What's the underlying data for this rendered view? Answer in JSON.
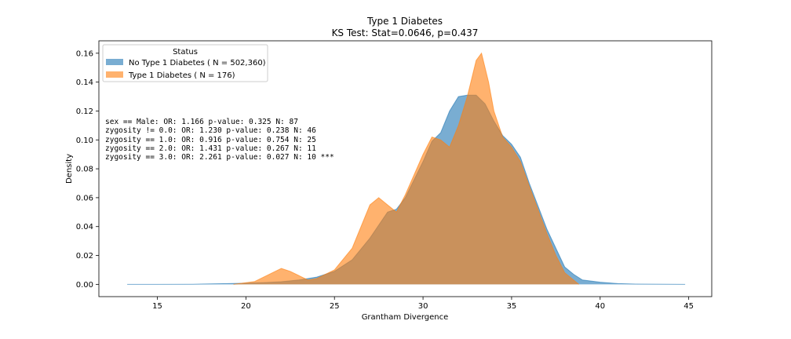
{
  "chart_data": {
    "type": "area",
    "title": "Type 1 Diabetes",
    "subtitle": "KS Test: Stat=0.0646, p=0.437",
    "xlabel": "Grantham Divergence",
    "ylabel": "Density",
    "xlim": [
      11.7,
      46.3
    ],
    "ylim": [
      -0.0085,
      0.1686
    ],
    "xticks": [
      15,
      20,
      25,
      30,
      35,
      40,
      45
    ],
    "yticks": [
      0.0,
      0.02,
      0.04,
      0.06,
      0.08,
      0.1,
      0.12,
      0.14,
      0.16
    ],
    "xtick_labels": [
      "15",
      "20",
      "25",
      "30",
      "35",
      "40",
      "45"
    ],
    "ytick_labels": [
      "0.00",
      "0.02",
      "0.04",
      "0.06",
      "0.08",
      "0.10",
      "0.12",
      "0.14",
      "0.16"
    ],
    "grid": false,
    "legend": {
      "title": "Status",
      "placement": "top-left"
    },
    "series": [
      {
        "name": "No Type 1 Diabetes ( N = 502,360)",
        "color": "#1f77b4",
        "x": [
          13.3,
          15,
          17,
          19,
          20,
          21,
          22,
          23,
          24,
          25,
          26,
          27,
          27.5,
          28,
          28.5,
          29,
          30,
          30.5,
          31,
          31.5,
          32,
          32.5,
          33,
          33.5,
          34,
          34.5,
          35,
          35.5,
          36,
          37,
          38,
          38.5,
          39,
          40,
          41,
          42,
          44.8
        ],
        "y": [
          0.0,
          0.0,
          0.0001,
          0.0005,
          0.0008,
          0.0012,
          0.0018,
          0.003,
          0.005,
          0.009,
          0.017,
          0.032,
          0.041,
          0.05,
          0.052,
          0.06,
          0.085,
          0.099,
          0.105,
          0.12,
          0.13,
          0.131,
          0.131,
          0.125,
          0.113,
          0.103,
          0.097,
          0.088,
          0.07,
          0.038,
          0.012,
          0.007,
          0.003,
          0.0015,
          0.0005,
          0.0002,
          0.0
        ]
      },
      {
        "name": "Type 1 Diabetes ( N = 176)",
        "color": "#ff7f0e",
        "x": [
          19.3,
          20.5,
          21.5,
          22,
          22.5,
          23.5,
          24,
          25,
          26,
          27,
          27.5,
          28,
          28.5,
          29,
          30,
          30.5,
          31,
          31.5,
          32,
          32.5,
          33,
          33.3,
          33.7,
          34,
          34.5,
          35,
          35.5,
          36,
          37,
          37.5,
          38,
          38.8
        ],
        "y": [
          0.0,
          0.002,
          0.008,
          0.011,
          0.009,
          0.003,
          0.004,
          0.01,
          0.025,
          0.055,
          0.06,
          0.055,
          0.05,
          0.062,
          0.09,
          0.102,
          0.1,
          0.095,
          0.11,
          0.13,
          0.155,
          0.16,
          0.14,
          0.12,
          0.102,
          0.095,
          0.085,
          0.068,
          0.035,
          0.02,
          0.008,
          0.0
        ]
      }
    ],
    "annotations": [
      "sex == Male: OR: 1.166 p-value: 0.325 N: 87",
      "zygosity != 0.0: OR: 1.230 p-value: 0.238 N: 46",
      "zygosity == 1.0: OR: 0.916 p-value: 0.754 N: 25",
      "zygosity == 2.0: OR: 1.431 p-value: 0.267 N: 11",
      "zygosity == 3.0: OR: 2.261 p-value: 0.027 N: 10 ***"
    ]
  }
}
